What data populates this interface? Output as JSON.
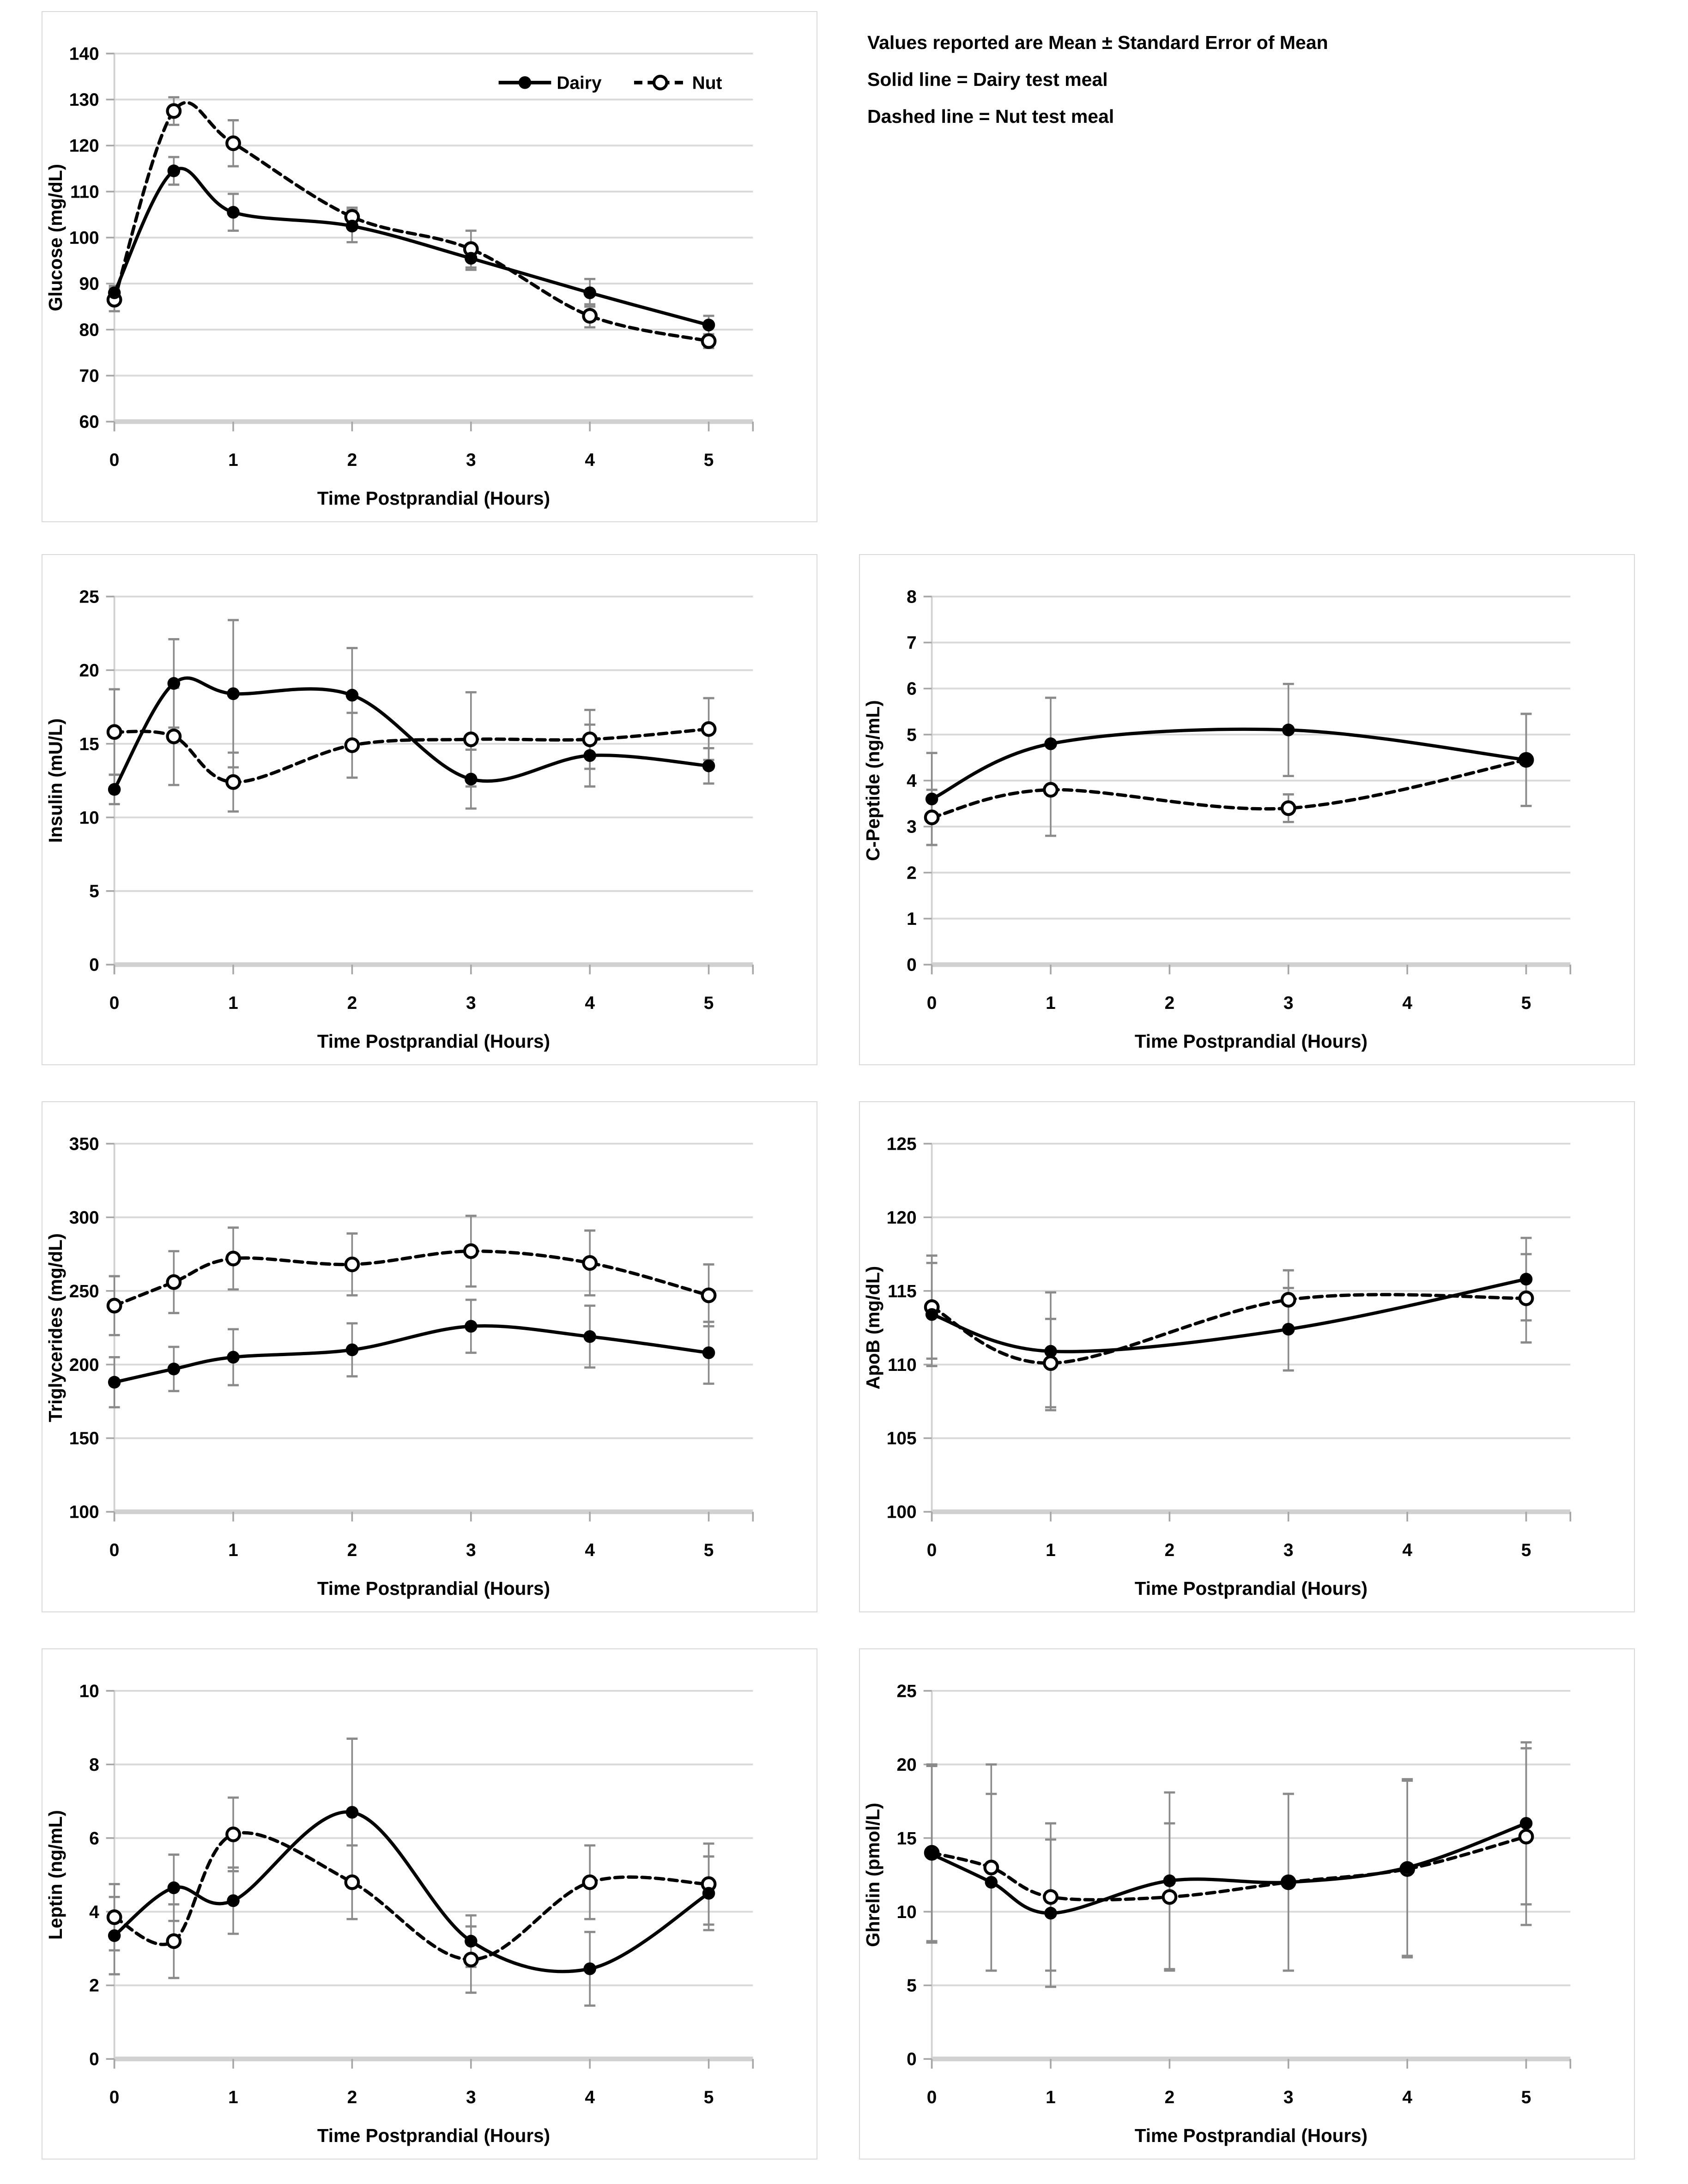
{
  "notes": {
    "line1": "Values reported are Mean ± Standard Error of Mean",
    "line2": "Solid line = Dairy test meal",
    "line3": "Dashed line = Nut test meal"
  },
  "colors": {
    "series_line": "#000000",
    "error_bar": "#8a8a8a",
    "gridline": "#d9d9d9",
    "axis_line": "#d1d1d1",
    "tick_mark": "#a6a6a6",
    "background": "#ffffff",
    "text": "#000000"
  },
  "chart_data": [
    {
      "key": "glucose",
      "type": "line",
      "title": "",
      "ylabel": "Glucose (mg/dL)",
      "xlabel": "Time Postprandial (Hours)",
      "x": [
        0,
        0.5,
        1,
        2,
        3,
        4,
        5
      ],
      "xticks": [
        0,
        1,
        2,
        3,
        4,
        5
      ],
      "ylim": [
        60,
        140
      ],
      "yticks": [
        60,
        70,
        80,
        90,
        100,
        110,
        120,
        130,
        140
      ],
      "grid": true,
      "legend": {
        "show": true,
        "position": "top-right-inside"
      },
      "series": [
        {
          "name": "Dairy",
          "line": "solid",
          "marker": "filled-circle",
          "values": [
            88,
            114.5,
            105.5,
            102.5,
            95.5,
            88,
            81
          ],
          "errors": [
            1.5,
            3,
            4,
            3.5,
            2.5,
            3,
            2
          ]
        },
        {
          "name": "Nut",
          "line": "dashed",
          "marker": "open-circle",
          "values": [
            86.5,
            127.5,
            120.5,
            104.5,
            97.5,
            83,
            77.5
          ],
          "errors": [
            2.5,
            3,
            5,
            2,
            4,
            2.5,
            1.5
          ]
        }
      ]
    },
    {
      "key": "insulin",
      "type": "line",
      "title": "",
      "ylabel": "Insulin (mU/L)",
      "xlabel": "Time Postprandial (Hours)",
      "x": [
        0,
        0.5,
        1,
        2,
        3,
        4,
        5
      ],
      "xticks": [
        0,
        1,
        2,
        3,
        4,
        5
      ],
      "ylim": [
        0,
        25
      ],
      "yticks": [
        0,
        5,
        10,
        15,
        20,
        25
      ],
      "grid": true,
      "legend": {
        "show": false
      },
      "series": [
        {
          "name": "Dairy",
          "line": "solid",
          "marker": "filled-circle",
          "values": [
            11.9,
            19.1,
            18.4,
            18.3,
            12.6,
            14.2,
            13.5
          ],
          "errors": [
            1.0,
            3.0,
            5.0,
            3.2,
            2.0,
            2.1,
            1.2
          ]
        },
        {
          "name": "Nut",
          "line": "dashed",
          "marker": "open-circle",
          "values": [
            15.8,
            15.5,
            12.4,
            14.9,
            15.3,
            15.3,
            16.0
          ],
          "errors": [
            2.9,
            3.3,
            2.0,
            2.2,
            3.2,
            2.0,
            2.1
          ]
        }
      ]
    },
    {
      "key": "cpeptide",
      "type": "line",
      "title": "",
      "ylabel": "C-Peptide (ng/mL)",
      "xlabel": "Time Postprandial (Hours)",
      "x": [
        0,
        1,
        3,
        5
      ],
      "xticks": [
        0,
        1,
        2,
        3,
        4,
        5
      ],
      "ylim": [
        0,
        8
      ],
      "yticks": [
        0,
        1,
        2,
        3,
        4,
        5,
        6,
        7,
        8
      ],
      "grid": true,
      "legend": {
        "show": false
      },
      "series": [
        {
          "name": "Dairy",
          "line": "solid",
          "marker": "filled-circle",
          "values": [
            3.6,
            4.8,
            5.1,
            4.45
          ],
          "errors": [
            1.0,
            1.0,
            1.0,
            1.0
          ]
        },
        {
          "name": "Nut",
          "line": "dashed",
          "marker": "open-circle",
          "values": [
            3.2,
            3.8,
            3.4,
            4.45
          ],
          "errors": [
            0.6,
            1.0,
            0.3,
            1.0
          ]
        }
      ]
    },
    {
      "key": "triglycerides",
      "type": "line",
      "title": "",
      "ylabel": "Triglycerides (mg/dL)",
      "xlabel": "Time Postprandial (Hours)",
      "x": [
        0,
        0.5,
        1,
        2,
        3,
        4,
        5
      ],
      "xticks": [
        0,
        1,
        2,
        3,
        4,
        5
      ],
      "ylim": [
        100,
        350
      ],
      "yticks": [
        100,
        150,
        200,
        250,
        300,
        350
      ],
      "grid": true,
      "legend": {
        "show": false
      },
      "series": [
        {
          "name": "Dairy",
          "line": "solid",
          "marker": "filled-circle",
          "values": [
            188,
            197,
            205,
            210,
            226,
            219,
            208
          ],
          "errors": [
            17,
            15,
            19,
            18,
            18,
            21,
            21
          ]
        },
        {
          "name": "Nut",
          "line": "dashed",
          "marker": "open-circle",
          "values": [
            240,
            256,
            272,
            268,
            277,
            269,
            247
          ],
          "errors": [
            20,
            21,
            21,
            21,
            24,
            22,
            21
          ]
        }
      ]
    },
    {
      "key": "apob",
      "type": "line",
      "title": "",
      "ylabel": "ApoB (mg/dL)",
      "xlabel": "Time Postprandial (Hours)",
      "x": [
        0,
        1,
        3,
        5
      ],
      "xticks": [
        0,
        1,
        2,
        3,
        4,
        5
      ],
      "ylim": [
        100,
        125
      ],
      "yticks": [
        100,
        105,
        110,
        115,
        120,
        125
      ],
      "grid": true,
      "legend": {
        "show": false
      },
      "series": [
        {
          "name": "Dairy",
          "line": "solid",
          "marker": "filled-circle",
          "values": [
            113.4,
            110.9,
            112.4,
            115.8
          ],
          "errors": [
            3.5,
            4.0,
            2.8,
            2.8
          ]
        },
        {
          "name": "Nut",
          "line": "dashed",
          "marker": "open-circle",
          "values": [
            113.9,
            110.1,
            114.4,
            114.5
          ],
          "errors": [
            3.5,
            3.0,
            2.0,
            3.0
          ]
        }
      ]
    },
    {
      "key": "leptin",
      "type": "line",
      "title": "",
      "ylabel": "Leptin (ng/mL)",
      "xlabel": "Time Postprandial (Hours)",
      "x": [
        0,
        0.5,
        1,
        2,
        3,
        4,
        5
      ],
      "xticks": [
        0,
        1,
        2,
        3,
        4,
        5
      ],
      "ylim": [
        0,
        10
      ],
      "yticks": [
        0,
        2,
        4,
        6,
        8,
        10
      ],
      "grid": true,
      "legend": {
        "show": false
      },
      "series": [
        {
          "name": "Dairy",
          "line": "solid",
          "marker": "filled-circle",
          "values": [
            3.35,
            4.65,
            4.3,
            6.7,
            3.2,
            2.45,
            4.5
          ],
          "errors": [
            1.05,
            0.9,
            0.9,
            2.0,
            0.7,
            1.0,
            1.0
          ]
        },
        {
          "name": "Nut",
          "line": "dashed",
          "marker": "open-circle",
          "values": [
            3.85,
            3.2,
            6.1,
            4.8,
            2.7,
            4.8,
            4.75
          ],
          "errors": [
            0.9,
            1.0,
            1.0,
            1.0,
            0.9,
            1.0,
            1.1
          ]
        }
      ]
    },
    {
      "key": "ghrelin",
      "type": "line",
      "title": "",
      "ylabel": "Ghrelin (pmol/L)",
      "xlabel": "Time Postprandial (Hours)",
      "x": [
        0,
        0.5,
        1,
        2,
        3,
        4,
        5
      ],
      "xticks": [
        0,
        1,
        2,
        3,
        4,
        5
      ],
      "ylim": [
        0,
        25
      ],
      "yticks": [
        0,
        5,
        10,
        15,
        20,
        25
      ],
      "grid": true,
      "legend": {
        "show": false
      },
      "series": [
        {
          "name": "Dairy",
          "line": "solid",
          "marker": "filled-circle",
          "values": [
            13.9,
            12.0,
            9.9,
            12.1,
            12.0,
            13.0,
            16.0
          ],
          "errors": [
            6.0,
            6.0,
            5.0,
            6.0,
            6.0,
            6.0,
            5.5
          ]
        },
        {
          "name": "Nut",
          "line": "dashed",
          "marker": "open-circle",
          "values": [
            14.0,
            13.0,
            11.0,
            11.0,
            12.0,
            12.9,
            15.1
          ],
          "errors": [
            6.0,
            7.0,
            5.0,
            5.0,
            6.0,
            6.0,
            6.0
          ]
        }
      ]
    }
  ]
}
